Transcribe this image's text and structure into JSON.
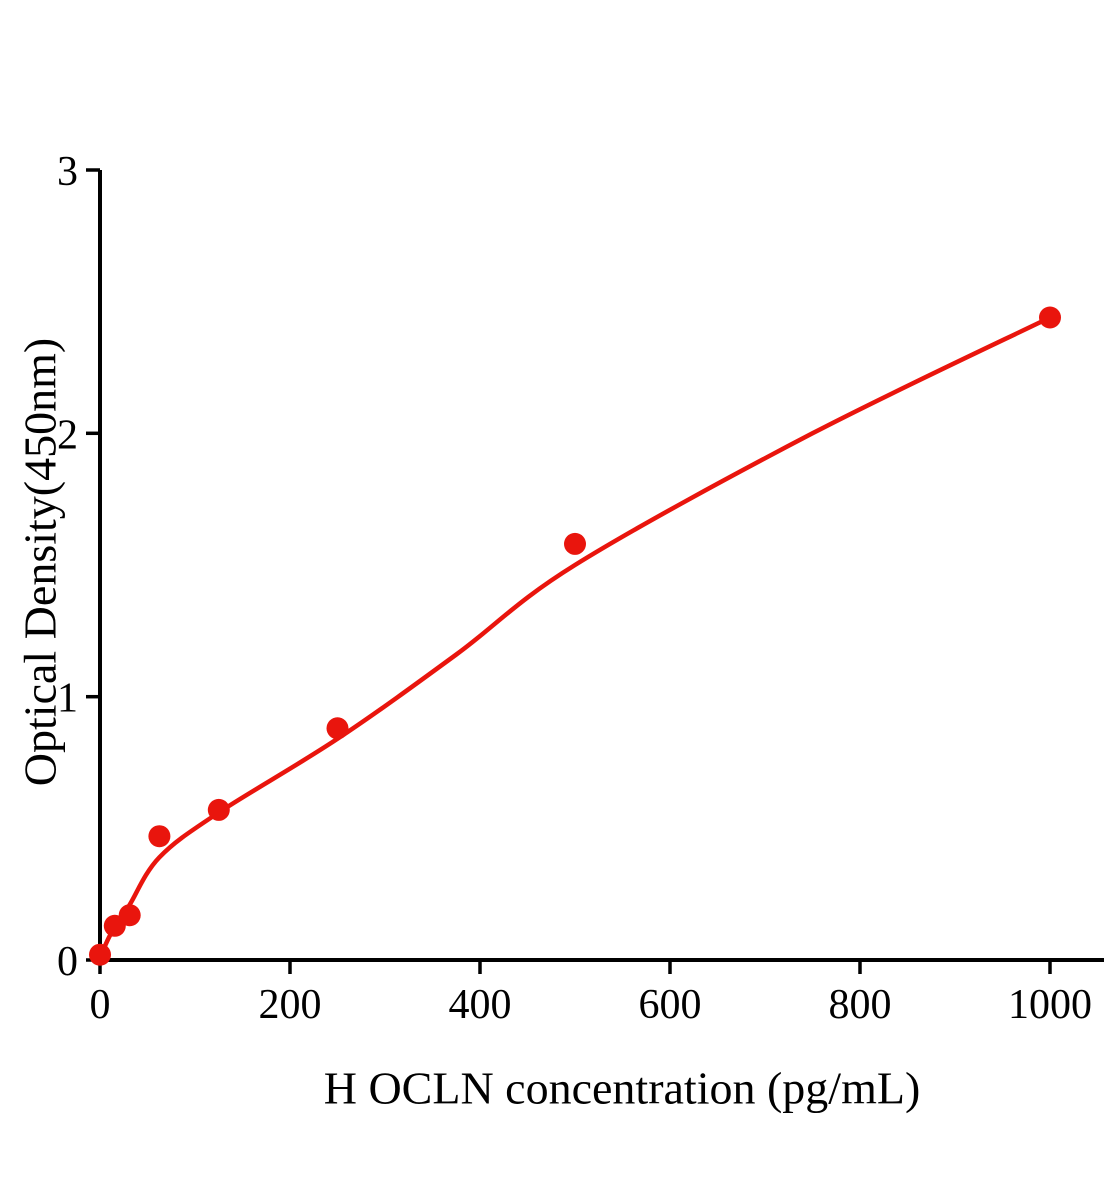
{
  "figure": {
    "background": "#ffffff"
  },
  "chart_data": {
    "type": "scatter",
    "title": "",
    "xlabel": "H OCLN concentration (pg/mL)",
    "ylabel": "Optical Density(450nm)",
    "xlim": [
      0,
      1057
    ],
    "ylim": [
      0,
      3
    ],
    "x_ticks": [
      0,
      200,
      400,
      600,
      800,
      1000
    ],
    "y_ticks": [
      0,
      1,
      2,
      3
    ],
    "grid": false,
    "legend": false,
    "axis_color": "#000000",
    "accent_color": "#e9150d",
    "series": [
      {
        "name": "H OCLN standard curve",
        "marker": "circle",
        "color": "#e9150d",
        "points": [
          {
            "x": 0,
            "y": 0.02
          },
          {
            "x": 15.625,
            "y": 0.13
          },
          {
            "x": 31.25,
            "y": 0.17
          },
          {
            "x": 62.5,
            "y": 0.47
          },
          {
            "x": 125,
            "y": 0.57
          },
          {
            "x": 250,
            "y": 0.88
          },
          {
            "x": 500,
            "y": 1.58
          },
          {
            "x": 1000,
            "y": 2.44
          }
        ]
      }
    ],
    "fit_curve": [
      [
        0,
        0.01
      ],
      [
        10,
        0.09
      ],
      [
        20,
        0.15
      ],
      [
        31.25,
        0.21
      ],
      [
        62.5,
        0.39
      ],
      [
        125,
        0.56
      ],
      [
        250,
        0.84
      ],
      [
        375,
        1.16
      ],
      [
        500,
        1.5
      ],
      [
        750,
        2.0
      ],
      [
        1000,
        2.44
      ]
    ]
  }
}
